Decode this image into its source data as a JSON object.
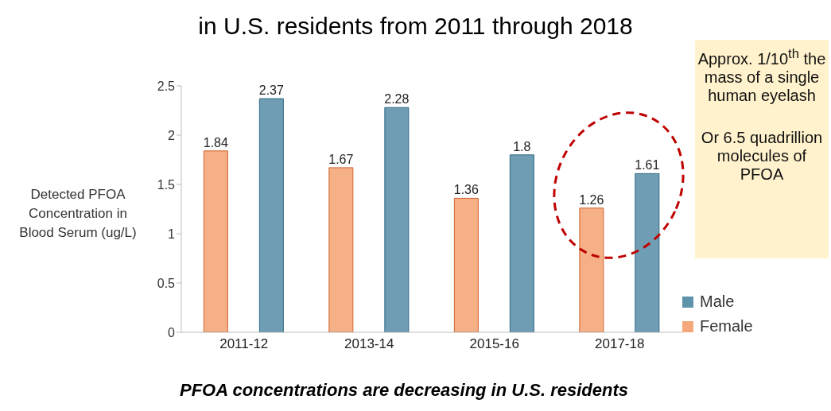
{
  "chart_data": {
    "type": "bar",
    "title": "in U.S. residents from 2011 through 2018",
    "ylabel": "Detected PFOA Concentration in Blood Serum (ug/L)",
    "categories": [
      "2011-12",
      "2013-14",
      "2015-16",
      "2017-18"
    ],
    "series": [
      {
        "name": "Female",
        "color": "#f4a77a",
        "values": [
          1.84,
          1.67,
          1.36,
          1.26
        ]
      },
      {
        "name": "Male",
        "color": "#5f93ac",
        "values": [
          2.37,
          2.28,
          1.8,
          1.61
        ]
      }
    ],
    "ylim": [
      0,
      2.5
    ],
    "yticks": [
      0,
      0.5,
      1,
      1.5,
      2,
      2.5
    ],
    "grid": false,
    "legend": "right",
    "data_labels": true,
    "annotations": [
      "Approx. 1/10$^{th}$ the mass of a single human eyelash",
      "Or 6.5 quadrillion molecules of PFOA",
      "PFOA concentrations are decreasing in U.S. residents"
    ]
  }
}
